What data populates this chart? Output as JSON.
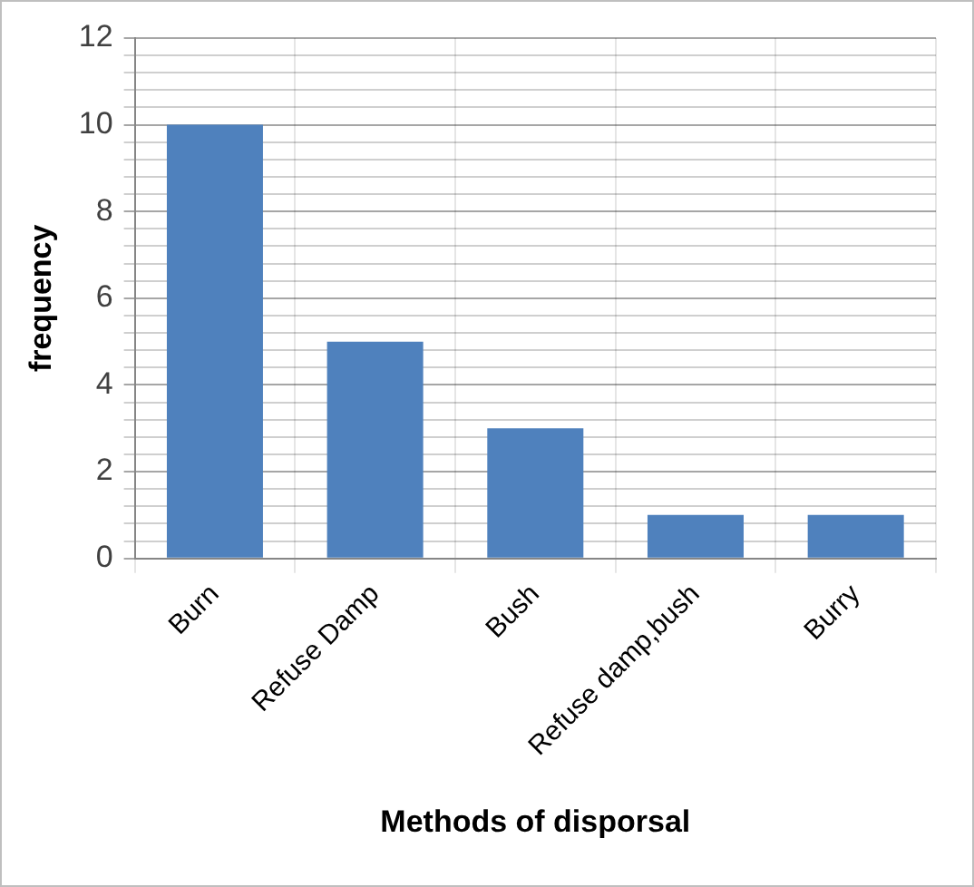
{
  "chart_data": {
    "type": "bar",
    "xlabel": "Methods of disporsal",
    "ylabel": "frequency",
    "categories": [
      "Burn",
      "Refuse Damp",
      "Bush",
      "Refuse damp,bush",
      "Burry"
    ],
    "values": [
      10,
      5,
      3,
      1,
      1
    ],
    "color": "#4f81bd",
    "ylim": [
      0,
      12
    ],
    "yticks": [
      0,
      {
        "value": 0.4,
        "label": null
      },
      {
        "value": 0.8,
        "label": null
      },
      {
        "value": 1.2,
        "label": null
      },
      {
        "value": 1.6,
        "label": null
      },
      2,
      {
        "value": 2.4,
        "label": null
      },
      {
        "value": 2.8,
        "label": null
      },
      {
        "value": 3.2,
        "label": null
      },
      {
        "value": 3.6,
        "label": null
      },
      4,
      {
        "value": 4.4,
        "label": null
      },
      {
        "value": 4.8,
        "label": null
      },
      {
        "value": 5.2,
        "label": null
      },
      {
        "value": 5.6,
        "label": null
      },
      6,
      {
        "value": 6.4,
        "label": null
      },
      {
        "value": 6.8,
        "label": null
      },
      {
        "value": 7.2,
        "label": null
      },
      {
        "value": 7.6,
        "label": null
      },
      8,
      {
        "value": 8.4,
        "label": null
      },
      {
        "value": 8.8,
        "label": null
      },
      {
        "value": 9.2,
        "label": null
      },
      {
        "value": 9.6,
        "label": null
      },
      10,
      {
        "value": 10.4,
        "label": null
      },
      {
        "value": 10.8,
        "label": null
      },
      {
        "value": 11.2,
        "label": null
      },
      {
        "value": 11.6,
        "label": null
      },
      12
    ],
    "grid": true,
    "legend": false
  }
}
